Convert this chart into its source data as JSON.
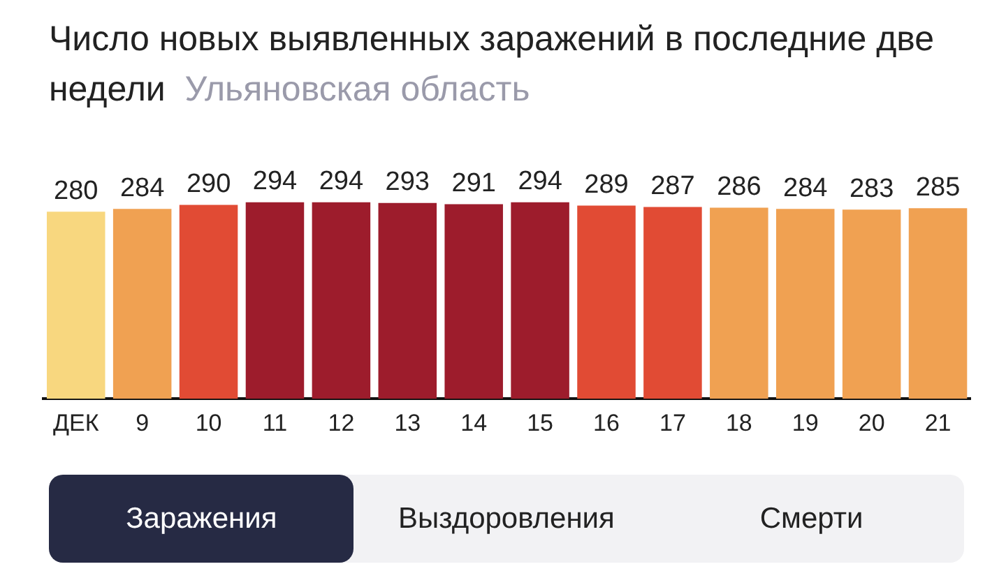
{
  "chart_data": {
    "type": "bar",
    "title": "Число новых выявленных заражений в последние две недели",
    "subtitle": "Ульяновская область",
    "categories": [
      "ДЕК",
      "9",
      "10",
      "11",
      "12",
      "13",
      "14",
      "15",
      "16",
      "17",
      "18",
      "19",
      "20",
      "21"
    ],
    "values": [
      280,
      284,
      290,
      294,
      294,
      293,
      291,
      294,
      289,
      287,
      286,
      284,
      283,
      285
    ],
    "colors": [
      "#f8d77f",
      "#f0a152",
      "#e14b34",
      "#9d1c2c",
      "#9d1c2c",
      "#9d1c2c",
      "#9d1c2c",
      "#9d1c2c",
      "#e14b34",
      "#e14b34",
      "#f0a152",
      "#f0a152",
      "#f0a152",
      "#f0a152"
    ],
    "data_labels": true,
    "grid": false,
    "legend": false,
    "annotations": [
      "Заражения",
      "Выздоровления",
      "Смерти"
    ]
  }
}
